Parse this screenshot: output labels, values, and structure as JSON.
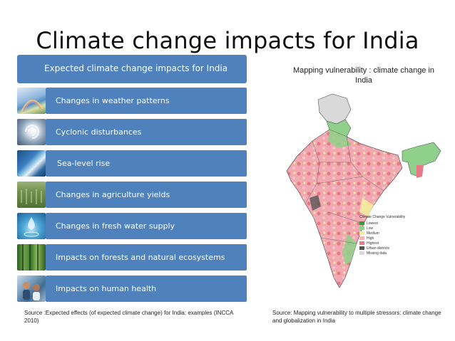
{
  "slide": {
    "title": "Climate change impacts for India"
  },
  "left_panel": {
    "header": "Expected climate change impacts for India",
    "items": [
      {
        "label": "Changes in weather patterns",
        "icon": "weather-image"
      },
      {
        "label": "Cyclonic disturbances",
        "icon": "cyclone-image"
      },
      {
        "label": "Sea-level rise",
        "icon": "coast-image"
      },
      {
        "label": "Changes in agriculture yields",
        "icon": "crops-image"
      },
      {
        "label": "Changes in fresh water supply",
        "icon": "water-drop-image"
      },
      {
        "label": "Impacts on forests and natural ecosystems",
        "icon": "forest-image"
      },
      {
        "label": "Impacts on human health",
        "icon": "people-image"
      }
    ],
    "source": "Source :Expected effects (of expected climate change) for India: examples (INCCA 2010)",
    "bar_color": "#4f81bd"
  },
  "right_panel": {
    "caption": "Mapping vulnerability : climate change in India",
    "legend": {
      "title": "Climate Change Vulnerability",
      "entries": [
        {
          "label": "Lowest",
          "color": "#2e9e3e"
        },
        {
          "label": "Low",
          "color": "#8fd18a"
        },
        {
          "label": "Medium",
          "color": "#f4eca0"
        },
        {
          "label": "High",
          "color": "#f5b3b3"
        },
        {
          "label": "Highest",
          "color": "#e57a86"
        },
        {
          "label": "Urban districts",
          "color": "#555555"
        },
        {
          "label": "Missing data",
          "color": "#d9d9d9"
        }
      ]
    },
    "source": "Source: Mapping vulnerability to multiple stressors: climate change and globalization in India"
  }
}
